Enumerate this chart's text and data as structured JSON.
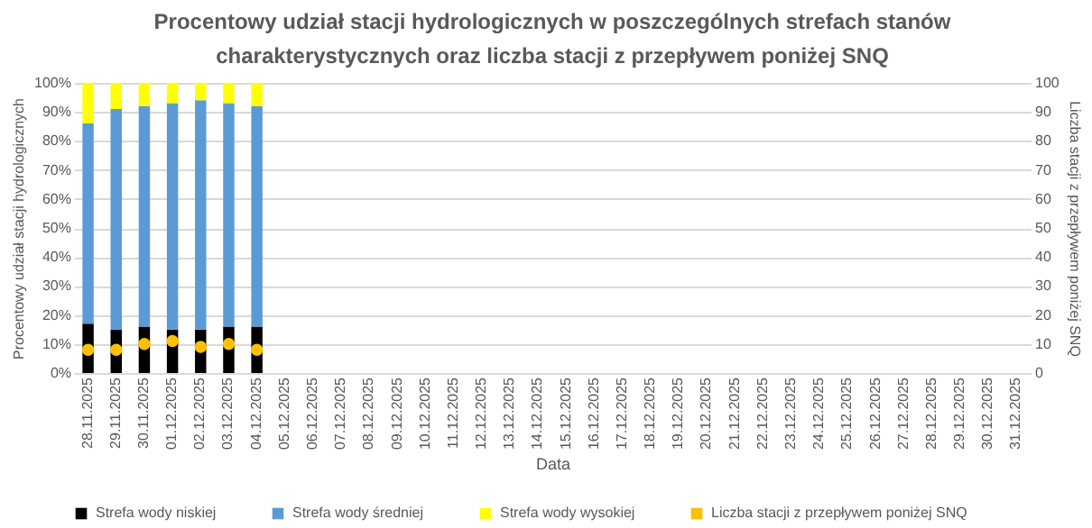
{
  "chart_data": {
    "type": "bar",
    "title": "Procentowy udział stacji hydrologicznych w poszczególnych strefach stanów charakterystycznych oraz liczba stacji z przepływem poniżej SNQ",
    "xlabel": "Data",
    "ylabel": "Procentowy udział stacji hydrologicznych",
    "y2label": "Liczba stacji z przepływem poniżej SNQ",
    "categories": [
      "28.11.2025",
      "29.11.2025",
      "30.11.2025",
      "01.12.2025",
      "02.12.2025",
      "03.12.2025",
      "04.12.2025",
      "05.12.2025",
      "06.12.2025",
      "07.12.2025",
      "08.12.2025",
      "09.12.2025",
      "10.12.2025",
      "11.12.2025",
      "12.12.2025",
      "13.12.2025",
      "14.12.2025",
      "15.12.2025",
      "16.12.2025",
      "17.12.2025",
      "18.12.2025",
      "19.12.2025",
      "20.12.2025",
      "21.12.2025",
      "22.12.2025",
      "23.12.2025",
      "24.12.2025",
      "25.12.2025",
      "26.12.2025",
      "27.12.2025",
      "28.12.2025",
      "29.12.2025",
      "30.12.2025",
      "31.12.2025"
    ],
    "series": [
      {
        "name": "Strefa wody niskiej",
        "color": "#000000",
        "values": [
          17,
          15,
          16,
          15,
          15,
          16,
          16,
          null,
          null,
          null,
          null,
          null,
          null,
          null,
          null,
          null,
          null,
          null,
          null,
          null,
          null,
          null,
          null,
          null,
          null,
          null,
          null,
          null,
          null,
          null,
          null,
          null,
          null,
          null
        ]
      },
      {
        "name": "Strefa wody średniej",
        "color": "#5b9bd5",
        "values": [
          69,
          76,
          76,
          78,
          79,
          77,
          76,
          null,
          null,
          null,
          null,
          null,
          null,
          null,
          null,
          null,
          null,
          null,
          null,
          null,
          null,
          null,
          null,
          null,
          null,
          null,
          null,
          null,
          null,
          null,
          null,
          null,
          null,
          null
        ]
      },
      {
        "name": "Strefa wody wysokiej",
        "color": "#ffff00",
        "values": [
          14,
          9,
          8,
          7,
          6,
          7,
          8,
          null,
          null,
          null,
          null,
          null,
          null,
          null,
          null,
          null,
          null,
          null,
          null,
          null,
          null,
          null,
          null,
          null,
          null,
          null,
          null,
          null,
          null,
          null,
          null,
          null,
          null,
          null
        ]
      },
      {
        "name": "Liczba stacji z przepływem poniżej SNQ",
        "type": "scatter",
        "axis": "y2",
        "color": "#ffc000",
        "values": [
          8,
          8,
          10,
          11,
          9,
          10,
          8,
          null,
          null,
          null,
          null,
          null,
          null,
          null,
          null,
          null,
          null,
          null,
          null,
          null,
          null,
          null,
          null,
          null,
          null,
          null,
          null,
          null,
          null,
          null,
          null,
          null,
          null,
          null
        ]
      }
    ],
    "stacked": true,
    "ylim": [
      0,
      100
    ],
    "yticks": [
      {
        "value": 0,
        "label": "0%"
      },
      {
        "value": 10,
        "label": "10%"
      },
      {
        "value": 20,
        "label": "20%"
      },
      {
        "value": 30,
        "label": "30%"
      },
      {
        "value": 40,
        "label": "40%"
      },
      {
        "value": 50,
        "label": "50%"
      },
      {
        "value": 60,
        "label": "60%"
      },
      {
        "value": 70,
        "label": "70%"
      },
      {
        "value": 80,
        "label": "80%"
      },
      {
        "value": 90,
        "label": "90%"
      },
      {
        "value": 100,
        "label": "100%"
      }
    ],
    "y2lim": [
      0,
      100
    ],
    "y2ticks": [
      0,
      10,
      20,
      30,
      40,
      50,
      60,
      70,
      80,
      90,
      100
    ],
    "grid": "y",
    "legend": "bottom",
    "marker": "circle"
  }
}
